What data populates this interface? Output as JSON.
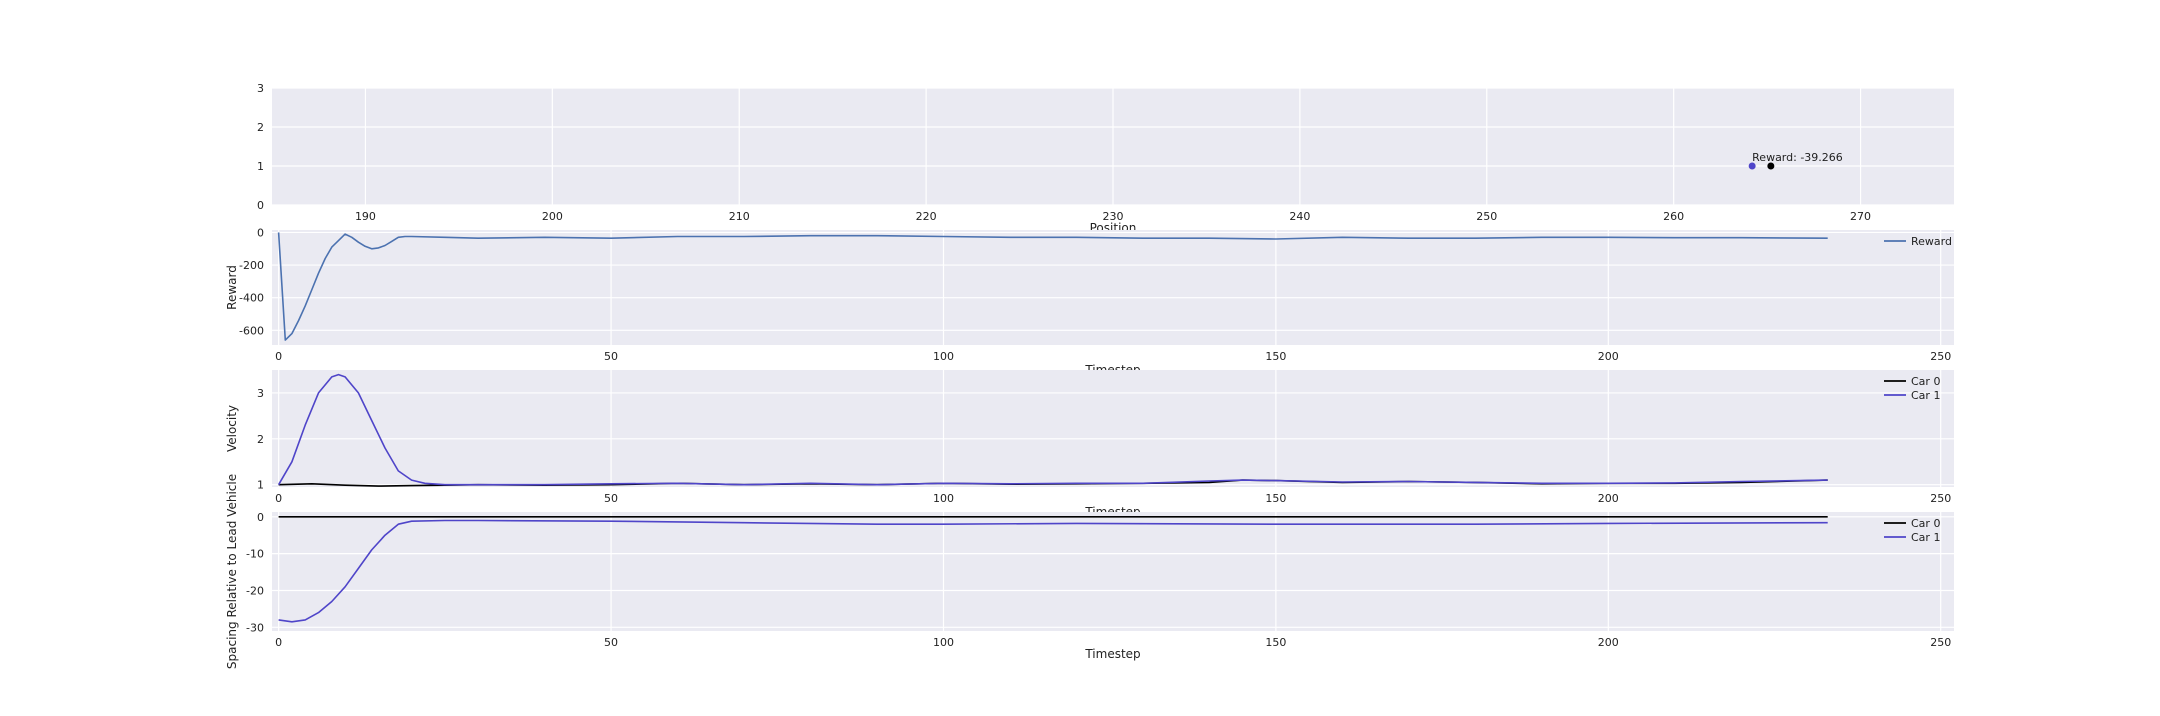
{
  "chart_data": [
    {
      "type": "scatter",
      "xlabel": "Position",
      "ylabel": "",
      "xlim": [
        185,
        275
      ],
      "ylim": [
        0,
        3
      ],
      "xticks": [
        190,
        200,
        210,
        220,
        230,
        240,
        250,
        260,
        270
      ],
      "yticks": [
        0,
        1,
        2,
        3
      ],
      "grid": true,
      "points": [
        {
          "x": 264.2,
          "y": 1,
          "color": "#4f45c9"
        },
        {
          "x": 265.2,
          "y": 1,
          "color": "#000000"
        }
      ],
      "annotation": {
        "text": "Reward: -39.266",
        "x": 264.2,
        "y": 1.1
      }
    },
    {
      "type": "line",
      "xlabel": "Timestep",
      "ylabel": "Reward",
      "xlim": [
        -1,
        252
      ],
      "ylim": [
        -690,
        15
      ],
      "xticks": [
        0,
        50,
        100,
        150,
        200,
        250
      ],
      "yticks": [
        0,
        -200,
        -400,
        -600
      ],
      "grid": true,
      "legend": "top-right",
      "series": [
        {
          "name": "Reward",
          "color": "#4c72b0",
          "x": [
            0,
            1,
            2,
            3,
            4,
            5,
            6,
            7,
            8,
            9,
            10,
            11,
            12,
            13,
            14,
            15,
            16,
            17,
            18,
            19,
            20,
            25,
            30,
            40,
            50,
            60,
            70,
            80,
            90,
            100,
            110,
            120,
            130,
            140,
            150,
            160,
            170,
            180,
            190,
            200,
            210,
            220,
            233
          ],
          "y": [
            0,
            -660,
            -620,
            -540,
            -450,
            -350,
            -250,
            -160,
            -90,
            -50,
            -10,
            -30,
            -60,
            -85,
            -100,
            -95,
            -80,
            -55,
            -30,
            -25,
            -25,
            -30,
            -35,
            -30,
            -35,
            -25,
            -25,
            -20,
            -20,
            -25,
            -30,
            -30,
            -35,
            -35,
            -40,
            -30,
            -35,
            -35,
            -30,
            -30,
            -32,
            -32,
            -35
          ]
        }
      ]
    },
    {
      "type": "line",
      "xlabel": "Timestep",
      "ylabel": "Velocity",
      "xlim": [
        -1,
        252
      ],
      "ylim": [
        0.95,
        3.5
      ],
      "xticks": [
        0,
        50,
        100,
        150,
        200,
        250
      ],
      "yticks": [
        1,
        2,
        3
      ],
      "grid": true,
      "legend": "top-right",
      "series": [
        {
          "name": "Car 0",
          "color": "#000000",
          "x": [
            0,
            5,
            10,
            15,
            20,
            25,
            30,
            40,
            50,
            60,
            70,
            80,
            90,
            100,
            110,
            120,
            130,
            140,
            145,
            150,
            160,
            170,
            180,
            190,
            200,
            210,
            220,
            233
          ],
          "y": [
            1.0,
            1.02,
            0.99,
            0.97,
            0.98,
            0.99,
            1.0,
            0.99,
            1.0,
            1.03,
            1.0,
            1.02,
            1.0,
            1.03,
            1.01,
            1.02,
            1.03,
            1.05,
            1.1,
            1.09,
            1.05,
            1.07,
            1.05,
            1.02,
            1.03,
            1.03,
            1.05,
            1.1
          ]
        },
        {
          "name": "Car 1",
          "color": "#4f45c9",
          "x": [
            0,
            2,
            4,
            6,
            8,
            9,
            10,
            12,
            14,
            16,
            18,
            20,
            22,
            25,
            30,
            40,
            50,
            60,
            70,
            80,
            90,
            100,
            110,
            120,
            130,
            140,
            145,
            150,
            160,
            170,
            180,
            190,
            200,
            210,
            220,
            233
          ],
          "y": [
            1.0,
            1.5,
            2.3,
            3.0,
            3.35,
            3.4,
            3.35,
            3.0,
            2.4,
            1.8,
            1.3,
            1.1,
            1.03,
            1.0,
            1.0,
            1.0,
            1.02,
            1.03,
            1.0,
            1.03,
            1.0,
            1.03,
            1.02,
            1.03,
            1.03,
            1.08,
            1.1,
            1.09,
            1.06,
            1.07,
            1.05,
            1.03,
            1.03,
            1.04,
            1.07,
            1.1
          ]
        }
      ]
    },
    {
      "type": "line",
      "xlabel": "Timestep",
      "ylabel": "Spacing Relative to Lead Vehicle",
      "xlim": [
        -1,
        252
      ],
      "ylim": [
        -31,
        1.3
      ],
      "xticks": [
        0,
        50,
        100,
        150,
        200,
        250
      ],
      "yticks": [
        0,
        -10,
        -20,
        -30
      ],
      "grid": true,
      "legend": "top-right",
      "series": [
        {
          "name": "Car 0",
          "color": "#000000",
          "x": [
            0,
            233
          ],
          "y": [
            0,
            0
          ]
        },
        {
          "name": "Car 1",
          "color": "#4f45c9",
          "x": [
            0,
            2,
            4,
            6,
            8,
            10,
            12,
            14,
            16,
            18,
            20,
            25,
            30,
            50,
            70,
            90,
            100,
            120,
            150,
            180,
            200,
            233
          ],
          "y": [
            -28,
            -28.5,
            -28,
            -26,
            -23,
            -19,
            -14,
            -9,
            -5,
            -2,
            -1.2,
            -1.0,
            -1.0,
            -1.2,
            -1.6,
            -2.0,
            -2.0,
            -1.8,
            -2.0,
            -2.0,
            -1.8,
            -1.6
          ]
        }
      ]
    }
  ]
}
